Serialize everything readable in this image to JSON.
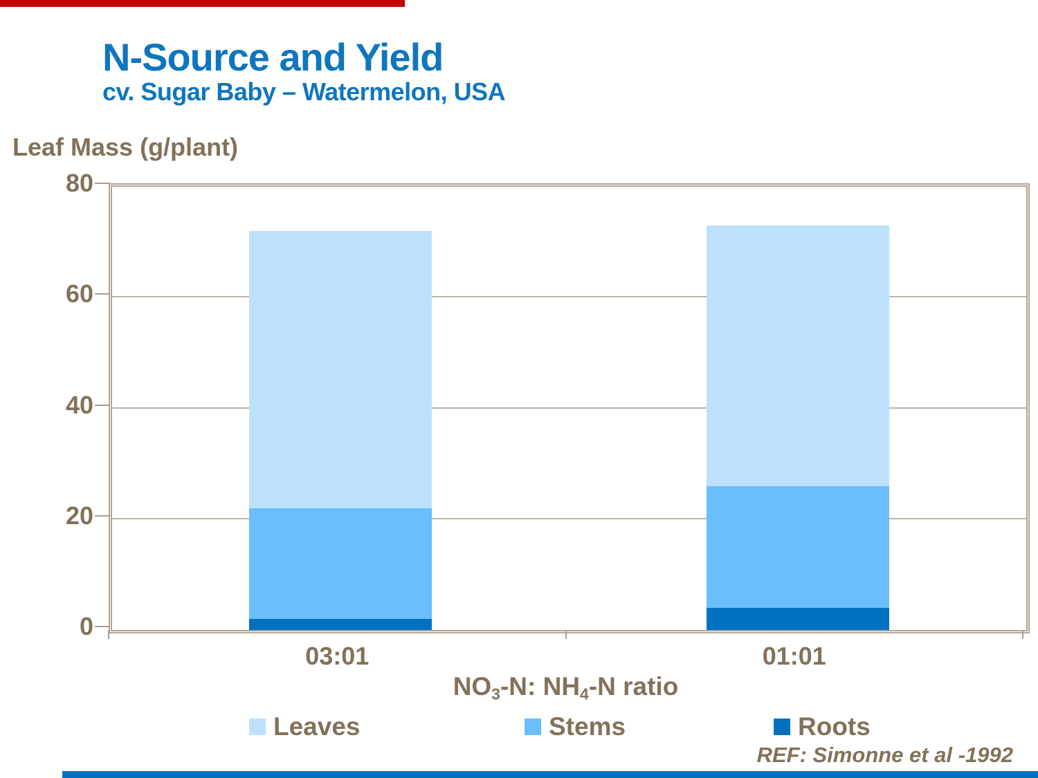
{
  "slide": {
    "title": "N-Source and Yield",
    "subtitle": "cv. Sugar Baby – Watermelon, USA",
    "reference": "REF: Simonne et al -1992",
    "title_color": "#0e76bd",
    "text_color": "#83715a",
    "accents": {
      "top_bar_color": "#c00000",
      "bottom_bar_color": "#0070c0"
    }
  },
  "chart_data": {
    "type": "bar",
    "stacked": true,
    "title": "N-Source and Yield",
    "subtitle": "cv. Sugar Baby – Watermelon, USA",
    "ylabel": "Leaf Mass (g/plant)",
    "xlabel": "NO3-N: NH4-N ratio",
    "xlabel_parts": [
      {
        "text": "NO"
      },
      {
        "text": "3",
        "subscript": true
      },
      {
        "text": "-N: NH"
      },
      {
        "text": "4",
        "subscript": true
      },
      {
        "text": "-N ratio"
      }
    ],
    "categories": [
      "03:01",
      "01:01"
    ],
    "series": [
      {
        "name": "Leaves",
        "color": "#bde1fc",
        "values": [
          50,
          47
        ]
      },
      {
        "name": "Stems",
        "color": "#6abefb",
        "values": [
          20,
          22
        ]
      },
      {
        "name": "Roots",
        "color": "#0071c1",
        "values": [
          2,
          4
        ]
      }
    ],
    "stack_totals": [
      72,
      73
    ],
    "ylim": [
      0,
      80
    ],
    "yticks": [
      0,
      20,
      40,
      60,
      80
    ],
    "gridline_yticks": [
      20,
      40,
      60
    ],
    "grid": "horizontal",
    "legend_position": "bottom",
    "gridline_color": "#bdb4aa",
    "axis_box_color": "#b3a396"
  }
}
